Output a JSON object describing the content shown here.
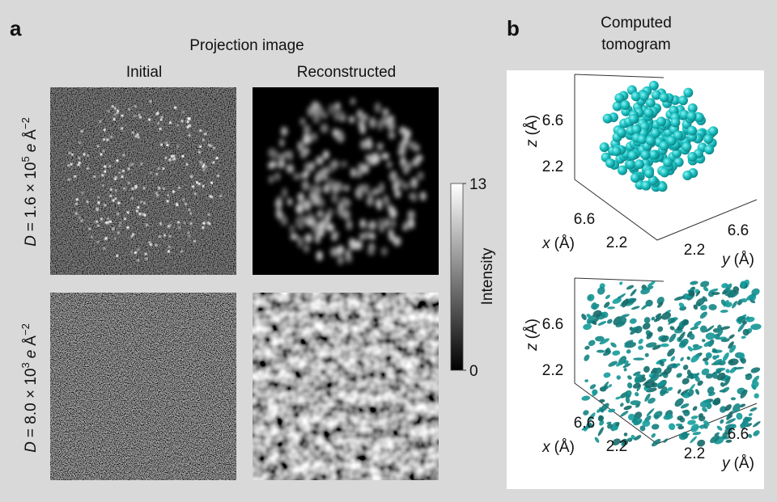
{
  "panel_a": {
    "label": "a",
    "title": "Projection image",
    "columns": [
      "Initial",
      "Reconstructed"
    ],
    "rows": [
      {
        "symbol": "D",
        "expression": "= 1.6 × 10",
        "exponent": "5",
        "unit_symbol": "e",
        "unit": "Å",
        "unit_exponent": "−2"
      },
      {
        "symbol": "D",
        "expression": "= 8.0 × 10",
        "exponent": "3",
        "unit_symbol": "e",
        "unit": "Å",
        "unit_exponent": "−2"
      }
    ],
    "colorbar": {
      "label": "Intensity",
      "max": 13,
      "min": 0
    }
  },
  "panel_b": {
    "label": "b",
    "title": [
      "Computed",
      "tomogram"
    ],
    "plots": [
      {
        "z_label": {
          "var": "z",
          "unit": "(Å)"
        },
        "z_ticks": [
          6.6,
          2.2
        ],
        "x_label": {
          "var": "x",
          "unit": "(Å)"
        },
        "x_ticks": [
          6.6,
          2.2
        ],
        "y_label": {
          "var": "y",
          "unit": "(Å)"
        },
        "y_ticks": [
          2.2,
          6.6
        ]
      },
      {
        "z_label": {
          "var": "z",
          "unit": "(Å)"
        },
        "z_ticks": [
          6.6,
          2.2
        ],
        "x_label": {
          "var": "x",
          "unit": "(Å)"
        },
        "x_ticks": [
          6.6,
          2.2
        ],
        "y_label": {
          "var": "y",
          "unit": "(Å)"
        },
        "y_ticks": [
          2.2,
          6.6
        ]
      }
    ]
  }
}
